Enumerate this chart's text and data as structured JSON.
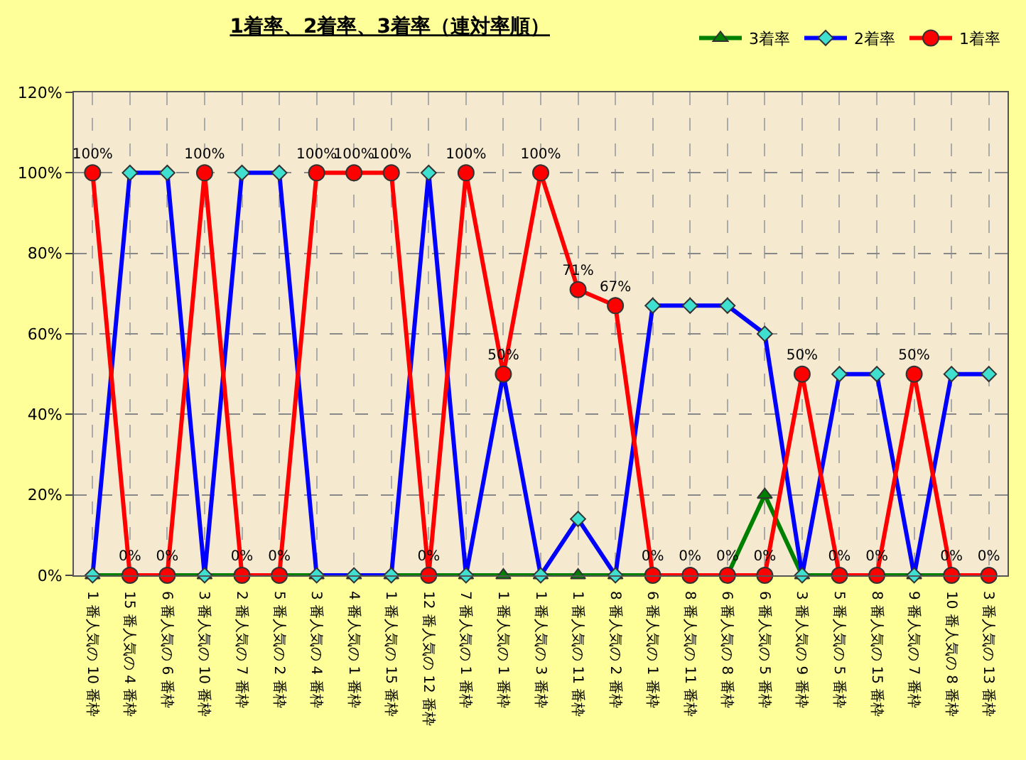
{
  "chart_data": {
    "type": "line",
    "title": "1着率、2着率、3着率（連対率順）",
    "categories": [
      "1 番人気の 10 番枠",
      "15 番人気の 4 番枠",
      "6 番人気の 6 番枠",
      "3 番人気の 10 番枠",
      "2 番人気の 7 番枠",
      "5 番人気の 2 番枠",
      "3 番人気の 4 番枠",
      "4 番人気の 1 番枠",
      "1 番人気の 15 番枠",
      "12 番人気の 12 番枠",
      "7 番人気の 1 番枠",
      "1 番人気の 1 番枠",
      "1 番人気の 3 番枠",
      "1 番人気の 11 番枠",
      "8 番人気の 2 番枠",
      "6 番人気の 1 番枠",
      "8 番人気の 11 番枠",
      "6 番人気の 8 番枠",
      "6 番人気の 5 番枠",
      "3 番人気の 9 番枠",
      "5 番人気の 5 番枠",
      "8 番人気の 15 番枠",
      "9 番人気の 7 番枠",
      "10 番人気の 8 番枠",
      "3 番人気の 13 番枠"
    ],
    "series": [
      {
        "name": "3着率",
        "color": "#008000",
        "marker": "triangle",
        "values": [
          0,
          0,
          0,
          0,
          0,
          0,
          0,
          0,
          0,
          0,
          0,
          0,
          0,
          0,
          0,
          0,
          0,
          0,
          20,
          0,
          0,
          0,
          0,
          0,
          0
        ]
      },
      {
        "name": "2着率",
        "color": "#0000ff",
        "marker": "diamond",
        "values": [
          0,
          100,
          100,
          0,
          100,
          100,
          0,
          0,
          0,
          100,
          0,
          50,
          0,
          14,
          0,
          67,
          67,
          67,
          60,
          0,
          50,
          50,
          0,
          50,
          50
        ]
      },
      {
        "name": "1着率",
        "color": "#ff0000",
        "marker": "circle",
        "values": [
          100,
          0,
          0,
          100,
          0,
          0,
          100,
          100,
          100,
          0,
          100,
          50,
          100,
          71,
          67,
          0,
          0,
          0,
          0,
          50,
          0,
          0,
          50,
          0,
          0
        ],
        "value_labels": [
          "100%",
          "0%",
          "0%",
          "100%",
          "0%",
          "0%",
          "100%",
          "100%",
          "100%",
          "0%",
          "100%",
          "50%",
          "100%",
          "71%",
          "67%",
          "0%",
          "0%",
          "0%",
          "0%",
          "50%",
          "0%",
          "0%",
          "50%",
          "0%",
          "0%"
        ]
      }
    ],
    "ylim": [
      0,
      120
    ],
    "yticks": [
      {
        "value": 0,
        "label": "0%"
      },
      {
        "value": 20,
        "label": "20%"
      },
      {
        "value": 40,
        "label": "40%"
      },
      {
        "value": 60,
        "label": "60%"
      },
      {
        "value": 80,
        "label": "80%"
      },
      {
        "value": 100,
        "label": "100%"
      },
      {
        "value": 120,
        "label": "120%"
      }
    ],
    "grid": true,
    "legend": "top right",
    "line_style": "solid"
  }
}
